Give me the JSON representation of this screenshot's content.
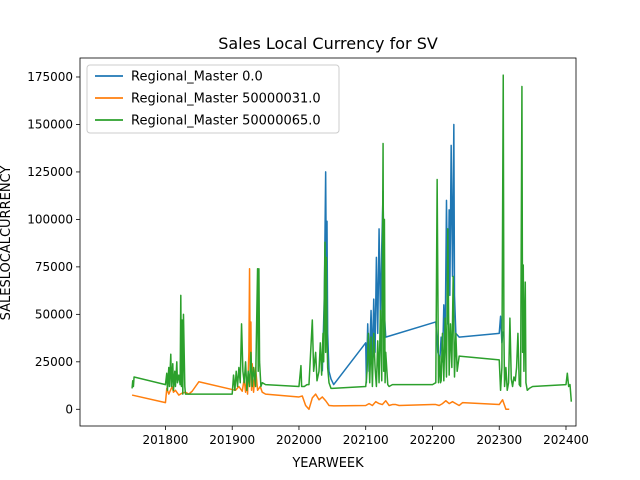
{
  "chart_data": {
    "type": "line",
    "title": "Sales Local Currency for SV",
    "xlabel": "YEARWEEK",
    "ylabel": "SALESLOCALCURRENCY",
    "xlim": [
      201672,
      202415
    ],
    "ylim": [
      -8800,
      185000
    ],
    "xticks": [
      201800,
      201900,
      202000,
      202100,
      202200,
      202300,
      202400
    ],
    "yticks": [
      0,
      25000,
      50000,
      75000,
      100000,
      125000,
      150000,
      175000
    ],
    "legend": "top-left",
    "grid": false,
    "series": [
      {
        "name": "Regional_Master 0.0",
        "color": "#1f77b4",
        "points": [
          [
            202035,
            20000
          ],
          [
            202038,
            60000
          ],
          [
            202040,
            125000
          ],
          [
            202041,
            70000
          ],
          [
            202042,
            99000
          ],
          [
            202043,
            40000
          ],
          [
            202045,
            20000
          ],
          [
            202048,
            16000
          ],
          [
            202052,
            13000
          ],
          [
            202100,
            35000
          ],
          [
            202101,
            14000
          ],
          [
            202103,
            45000
          ],
          [
            202105,
            20000
          ],
          [
            202108,
            52000
          ],
          [
            202110,
            25000
          ],
          [
            202112,
            58000
          ],
          [
            202114,
            30000
          ],
          [
            202116,
            80000
          ],
          [
            202118,
            40000
          ],
          [
            202120,
            95000
          ],
          [
            202122,
            48000
          ],
          [
            202124,
            85000
          ],
          [
            202126,
            115000
          ],
          [
            202128,
            50000
          ],
          [
            202130,
            38000
          ],
          [
            202205,
            46000
          ],
          [
            202208,
            30000
          ],
          [
            202211,
            26000
          ],
          [
            202213,
            38000
          ],
          [
            202215,
            25000
          ],
          [
            202217,
            55000
          ],
          [
            202219,
            35000
          ],
          [
            202221,
            110000
          ],
          [
            202223,
            45000
          ],
          [
            202225,
            105000
          ],
          [
            202226,
            60000
          ],
          [
            202228,
            139000
          ],
          [
            202230,
            70000
          ],
          [
            202232,
            150000
          ],
          [
            202233,
            60000
          ],
          [
            202235,
            40000
          ],
          [
            202240,
            38000
          ],
          [
            202300,
            40000
          ],
          [
            202302,
            49000
          ],
          [
            202304,
            35000
          ],
          [
            202306,
            41000
          ]
        ]
      },
      {
        "name": "Regional_Master 50000031.0",
        "color": "#ff7f0e",
        "points": [
          [
            201750,
            7500
          ],
          [
            201800,
            3500
          ],
          [
            201802,
            11000
          ],
          [
            201805,
            8000
          ],
          [
            201810,
            12000
          ],
          [
            201812,
            9000
          ],
          [
            201815,
            10000
          ],
          [
            201820,
            7500
          ],
          [
            201825,
            8500
          ],
          [
            201830,
            9000
          ],
          [
            201835,
            8000
          ],
          [
            201840,
            9500
          ],
          [
            201845,
            12000
          ],
          [
            201850,
            14500
          ],
          [
            201905,
            10000
          ],
          [
            201910,
            12000
          ],
          [
            201915,
            9500
          ],
          [
            201918,
            16000
          ],
          [
            201920,
            9000
          ],
          [
            201922,
            15000
          ],
          [
            201923,
            8000
          ],
          [
            201925,
            30000
          ],
          [
            201926,
            74000
          ],
          [
            201927,
            20000
          ],
          [
            201928,
            46000
          ],
          [
            201929,
            10000
          ],
          [
            201930,
            24000
          ],
          [
            201932,
            9000
          ],
          [
            201935,
            22000
          ],
          [
            201938,
            10000
          ],
          [
            201942,
            12000
          ],
          [
            201945,
            9000
          ],
          [
            201950,
            8000
          ],
          [
            202000,
            6500
          ],
          [
            202005,
            7000
          ],
          [
            202010,
            2000
          ],
          [
            202015,
            0
          ],
          [
            202020,
            6000
          ],
          [
            202025,
            8000
          ],
          [
            202030,
            5000
          ],
          [
            202035,
            6500
          ],
          [
            202040,
            4500
          ],
          [
            202045,
            2000
          ],
          [
            202052,
            1800
          ],
          [
            202100,
            2000
          ],
          [
            202105,
            3000
          ],
          [
            202110,
            2000
          ],
          [
            202115,
            4000
          ],
          [
            202120,
            3000
          ],
          [
            202125,
            2500
          ],
          [
            202130,
            4500
          ],
          [
            202135,
            2000
          ],
          [
            202140,
            2500
          ],
          [
            202145,
            2500
          ],
          [
            202150,
            2000
          ],
          [
            202200,
            2500
          ],
          [
            202205,
            2500
          ],
          [
            202210,
            2000
          ],
          [
            202215,
            3000
          ],
          [
            202220,
            4500
          ],
          [
            202225,
            3000
          ],
          [
            202230,
            4000
          ],
          [
            202235,
            3000
          ],
          [
            202240,
            2000
          ],
          [
            202245,
            3500
          ],
          [
            202300,
            2500
          ],
          [
            202305,
            5000
          ],
          [
            202310,
            0
          ],
          [
            202315,
            0
          ]
        ]
      },
      {
        "name": "Regional_Master 50000065.0",
        "color": "#2ca02c",
        "points": [
          [
            201750,
            11000
          ],
          [
            201751,
            15000
          ],
          [
            201752,
            12000
          ],
          [
            201753,
            17000
          ],
          [
            201800,
            13000
          ],
          [
            201802,
            19000
          ],
          [
            201803,
            10000
          ],
          [
            201805,
            22000
          ],
          [
            201806,
            12000
          ],
          [
            201808,
            29000
          ],
          [
            201809,
            12000
          ],
          [
            201811,
            24000
          ],
          [
            201812,
            10000
          ],
          [
            201814,
            20000
          ],
          [
            201815,
            12000
          ],
          [
            201817,
            25000
          ],
          [
            201818,
            14000
          ],
          [
            201820,
            18000
          ],
          [
            201822,
            13000
          ],
          [
            201823,
            60000
          ],
          [
            201824,
            12000
          ],
          [
            201825,
            47000
          ],
          [
            201826,
            8000
          ],
          [
            201827,
            50000
          ],
          [
            201829,
            12000
          ],
          [
            201830,
            8000
          ],
          [
            201900,
            8000
          ],
          [
            201902,
            18000
          ],
          [
            201904,
            10000
          ],
          [
            201906,
            20000
          ],
          [
            201908,
            12000
          ],
          [
            201910,
            22000
          ],
          [
            201912,
            14000
          ],
          [
            201914,
            45000
          ],
          [
            201916,
            20000
          ],
          [
            201918,
            14000
          ],
          [
            201920,
            25000
          ],
          [
            201922,
            10000
          ],
          [
            201924,
            20000
          ],
          [
            201926,
            12000
          ],
          [
            201928,
            30000
          ],
          [
            201930,
            12000
          ],
          [
            201932,
            22000
          ],
          [
            201935,
            12000
          ],
          [
            201938,
            74000
          ],
          [
            201939,
            20000
          ],
          [
            201940,
            74000
          ],
          [
            201941,
            25000
          ],
          [
            201943,
            12000
          ],
          [
            201945,
            14000
          ],
          [
            201950,
            13000
          ],
          [
            202000,
            12000
          ],
          [
            202003,
            23000
          ],
          [
            202004,
            12000
          ],
          [
            202008,
            12000
          ],
          [
            202012,
            13000
          ],
          [
            202015,
            13000
          ],
          [
            202020,
            47000
          ],
          [
            202022,
            20000
          ],
          [
            202025,
            30000
          ],
          [
            202027,
            15000
          ],
          [
            202030,
            20000
          ],
          [
            202032,
            35000
          ],
          [
            202034,
            18000
          ],
          [
            202036,
            40000
          ],
          [
            202037,
            25000
          ],
          [
            202039,
            88000
          ],
          [
            202040,
            30000
          ],
          [
            202041,
            80000
          ],
          [
            202042,
            40000
          ],
          [
            202043,
            22000
          ],
          [
            202045,
            14000
          ],
          [
            202048,
            11000
          ],
          [
            202050,
            11000
          ],
          [
            202100,
            12000
          ],
          [
            202102,
            20000
          ],
          [
            202104,
            40000
          ],
          [
            202106,
            14000
          ],
          [
            202108,
            38000
          ],
          [
            202110,
            12000
          ],
          [
            202112,
            40000
          ],
          [
            202114,
            22000
          ],
          [
            202116,
            12000
          ],
          [
            202118,
            36000
          ],
          [
            202120,
            14000
          ],
          [
            202122,
            52000
          ],
          [
            202124,
            15000
          ],
          [
            202126,
            140000
          ],
          [
            202127,
            20000
          ],
          [
            202128,
            100000
          ],
          [
            202129,
            14000
          ],
          [
            202130,
            30000
          ],
          [
            202133,
            13000
          ],
          [
            202135,
            12000
          ],
          [
            202140,
            13000
          ],
          [
            202145,
            13000
          ],
          [
            202150,
            13000
          ],
          [
            202200,
            13000
          ],
          [
            202205,
            14000
          ],
          [
            202207,
            121000
          ],
          [
            202209,
            14000
          ],
          [
            202211,
            28000
          ],
          [
            202212,
            14000
          ],
          [
            202213,
            15000
          ],
          [
            202215,
            40000
          ],
          [
            202217,
            15000
          ],
          [
            202219,
            48000
          ],
          [
            202221,
            17000
          ],
          [
            202223,
            95000
          ],
          [
            202225,
            18000
          ],
          [
            202227,
            45000
          ],
          [
            202229,
            22000
          ],
          [
            202231,
            70000
          ],
          [
            202233,
            17000
          ],
          [
            202235,
            40000
          ],
          [
            202237,
            20000
          ],
          [
            202240,
            28000
          ],
          [
            202300,
            26000
          ],
          [
            202302,
            10000
          ],
          [
            202304,
            22000
          ],
          [
            202306,
            176000
          ],
          [
            202307,
            40000
          ],
          [
            202308,
            12000
          ],
          [
            202310,
            22000
          ],
          [
            202312,
            10000
          ],
          [
            202314,
            14000
          ],
          [
            202316,
            48000
          ],
          [
            202318,
            16000
          ],
          [
            202320,
            12000
          ],
          [
            202322,
            17000
          ],
          [
            202324,
            15000
          ],
          [
            202326,
            22000
          ],
          [
            202328,
            40000
          ],
          [
            202330,
            13000
          ],
          [
            202332,
            12000
          ],
          [
            202334,
            170000
          ],
          [
            202335,
            30000
          ],
          [
            202336,
            76000
          ],
          [
            202337,
            20000
          ],
          [
            202339,
            67000
          ],
          [
            202340,
            14000
          ],
          [
            202342,
            10000
          ],
          [
            202345,
            11000
          ],
          [
            202350,
            12000
          ],
          [
            202400,
            13000
          ],
          [
            202402,
            19000
          ],
          [
            202404,
            12000
          ],
          [
            202406,
            13000
          ],
          [
            202408,
            4000
          ]
        ]
      }
    ]
  }
}
